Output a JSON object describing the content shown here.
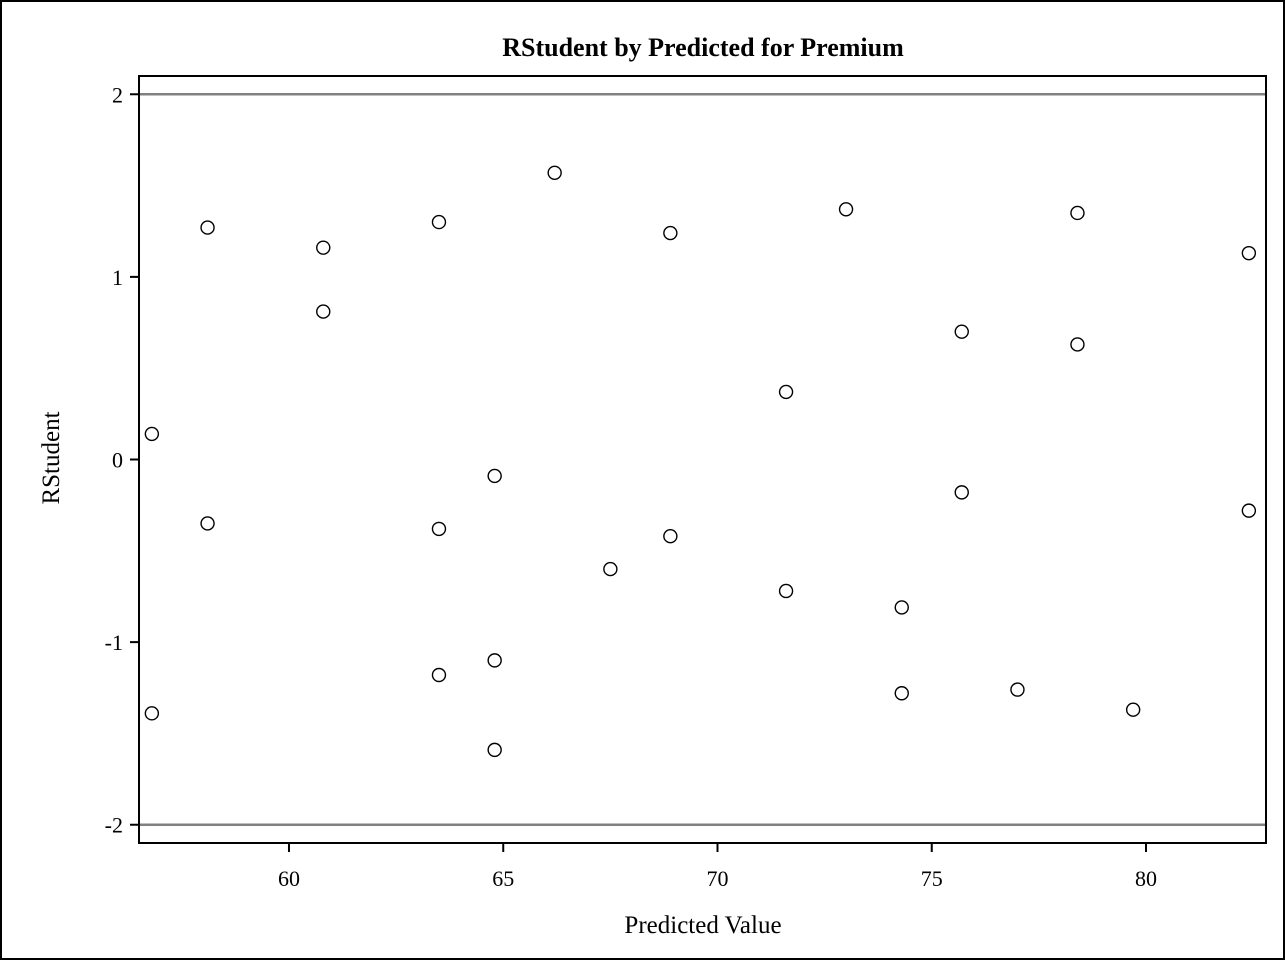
{
  "chart_data": {
    "type": "scatter",
    "title": "RStudent by Predicted for Premium",
    "xlabel": "Predicted Value",
    "ylabel": "RStudent",
    "xlim": [
      56.5,
      82.8
    ],
    "ylim": [
      -2.1,
      2.1
    ],
    "xticks": [
      60,
      65,
      70,
      75,
      80
    ],
    "yticks": [
      2,
      1,
      0,
      -1,
      -2
    ],
    "xtick_labels": [
      "60",
      "65",
      "70",
      "75",
      "80"
    ],
    "ytick_labels": [
      "2",
      "1",
      "0",
      "-1",
      "-2"
    ],
    "reference_lines": [
      2,
      -2
    ],
    "grid": false,
    "marker": "open-circle",
    "colors": {
      "reference_line": "#808080",
      "marker": "#000000",
      "frame": "#000000"
    },
    "points": [
      {
        "x": 56.8,
        "y": 0.14
      },
      {
        "x": 56.8,
        "y": -1.39
      },
      {
        "x": 58.1,
        "y": 1.27
      },
      {
        "x": 58.1,
        "y": -0.35
      },
      {
        "x": 60.8,
        "y": 1.16
      },
      {
        "x": 60.8,
        "y": 0.81
      },
      {
        "x": 63.5,
        "y": 1.3
      },
      {
        "x": 63.5,
        "y": -0.38
      },
      {
        "x": 63.5,
        "y": -1.18
      },
      {
        "x": 64.8,
        "y": -0.09
      },
      {
        "x": 64.8,
        "y": -1.1
      },
      {
        "x": 64.8,
        "y": -1.59
      },
      {
        "x": 66.2,
        "y": 1.57
      },
      {
        "x": 67.5,
        "y": -0.6
      },
      {
        "x": 68.9,
        "y": 1.24
      },
      {
        "x": 68.9,
        "y": -0.42
      },
      {
        "x": 71.6,
        "y": 0.37
      },
      {
        "x": 71.6,
        "y": -0.72
      },
      {
        "x": 73.0,
        "y": 1.37
      },
      {
        "x": 74.3,
        "y": -0.81
      },
      {
        "x": 74.3,
        "y": -1.28
      },
      {
        "x": 75.7,
        "y": 0.7
      },
      {
        "x": 75.7,
        "y": -0.18
      },
      {
        "x": 77.0,
        "y": -1.26
      },
      {
        "x": 78.4,
        "y": 1.35
      },
      {
        "x": 78.4,
        "y": 0.63
      },
      {
        "x": 79.7,
        "y": -1.37
      },
      {
        "x": 82.4,
        "y": 1.13
      },
      {
        "x": 82.4,
        "y": -0.28
      }
    ]
  }
}
